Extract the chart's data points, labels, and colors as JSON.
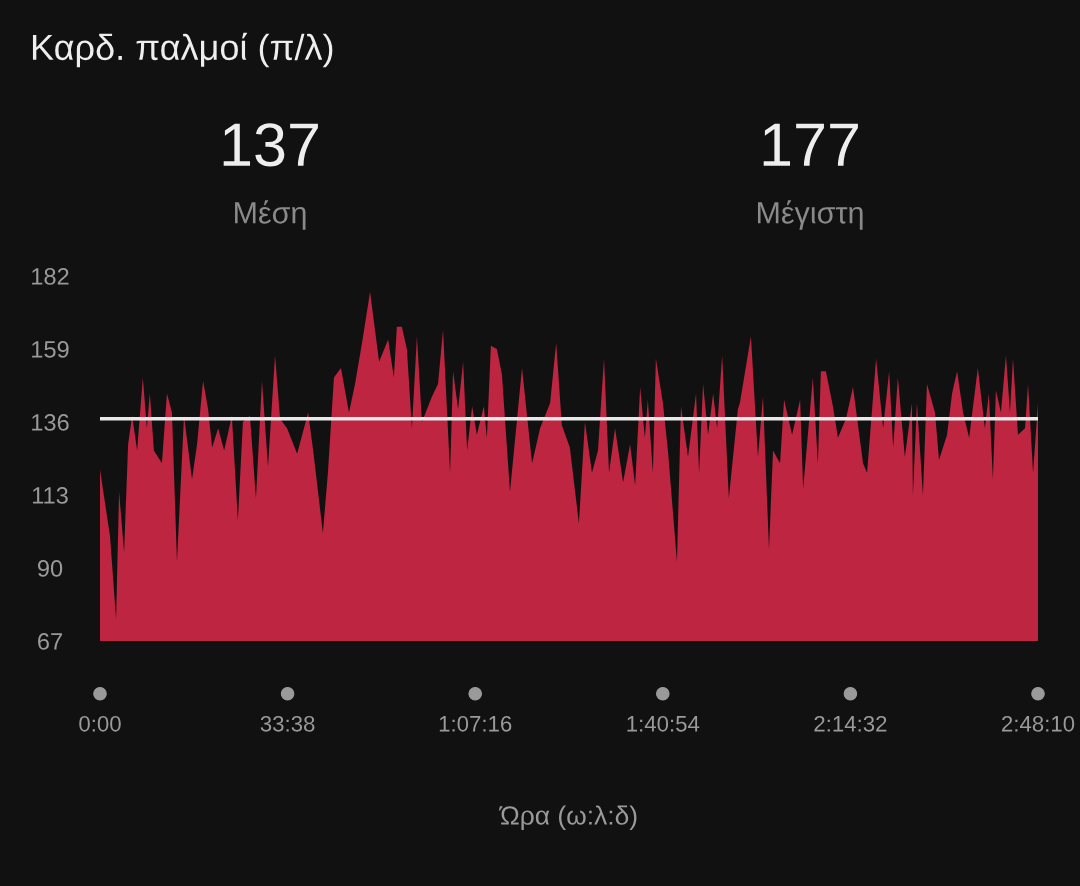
{
  "chart_data": {
    "type": "area",
    "title": "Καρδ. παλμοί (π/λ)",
    "xlabel": "Ώρα (ω:λ:δ)",
    "annotations": [
      "137",
      "Μέση",
      "177",
      "Μέγιστη"
    ],
    "xlim": [
      0,
      168.1667
    ],
    "ylim": [
      67,
      182
    ],
    "xticks": [
      {
        "value": 0,
        "label": "0:00"
      },
      {
        "value": 33.6333,
        "label": "33:38"
      },
      {
        "value": 67.2667,
        "label": "1:07:16"
      },
      {
        "value": 100.9,
        "label": "1:40:54"
      },
      {
        "value": 134.5333,
        "label": "2:14:32"
      },
      {
        "value": 168.1667,
        "label": "2:48:10"
      }
    ],
    "yticks": [
      67,
      90,
      113,
      136,
      159,
      182
    ],
    "grid": false,
    "legend": false,
    "ref_lines": [
      {
        "axis": "y",
        "value": 137,
        "color": "#e8e8e8"
      }
    ],
    "series": [
      {
        "color": "#bd2540",
        "x": [
          0,
          1.8,
          2.88,
          3.42,
          4.32,
          5.04,
          5.76,
          6.66,
          7.68,
          8.4,
          8.94,
          9.66,
          11.1,
          12,
          12.9,
          13.8,
          15.06,
          16.5,
          17.4,
          18.48,
          19.38,
          20.1,
          21.18,
          22.26,
          23.64,
          24.72,
          25.62,
          26.88,
          27.96,
          29.04,
          30.12,
          31.38,
          32.28,
          33.54,
          35.34,
          37.32,
          38.22,
          39.96,
          40.86,
          41.94,
          43.2,
          44.64,
          45.72,
          46.98,
          48.42,
          50.04,
          51.66,
          52.68,
          53.22,
          54.12,
          55.02,
          55.92,
          56.82,
          57.72,
          59.52,
          60.6,
          61.5,
          62.76,
          63.3,
          64.2,
          65.1,
          65.82,
          66.72,
          67.56,
          68.82,
          69.36,
          70.08,
          71.16,
          72.06,
          73.5,
          75.66,
          77.46,
          78.9,
          80.7,
          81.78,
          82.8,
          84.24,
          85.86,
          86.94,
          88.2,
          89.28,
          90.36,
          91.26,
          92.34,
          93.78,
          95.04,
          95.94,
          96.84,
          97.68,
          98.22,
          99.12,
          99.66,
          100.92,
          101.82,
          103.44,
          104.16,
          105.42,
          106.86,
          107.4,
          108.12,
          109.02,
          109.92,
          110.64,
          111.54,
          112.74,
          114.36,
          114.72,
          116.7,
          117.96,
          118.86,
          119.94,
          120.66,
          121.92,
          122.64,
          124.08,
          125.52,
          126.06,
          127.8,
          128.7,
          129.24,
          130.14,
          131.4,
          132.3,
          133.74,
          135,
          136.8,
          137.52,
          139.14,
          140.4,
          141.48,
          142.2,
          143.04,
          144.3,
          145.56,
          145.74,
          146.46,
          147.54,
          148.26,
          149.7,
          150.42,
          151.86,
          152.76,
          153.66,
          154.74,
          155.82,
          157.38,
          158.64,
          159.36,
          160.08,
          160.62,
          161.52,
          162.42,
          163.14,
          163.68,
          164.58,
          165.84,
          166.38,
          167.28,
          168.1667
        ],
        "values": [
          121,
          100,
          74,
          114,
          95,
          129,
          138,
          127,
          150,
          134,
          145,
          127,
          123,
          145,
          139,
          92,
          138,
          118,
          129,
          149,
          140,
          128,
          134,
          127,
          138,
          105,
          136,
          138,
          112,
          149,
          122,
          157,
          137,
          134,
          126,
          139,
          127,
          101,
          120,
          150,
          153,
          139,
          148,
          161,
          177,
          155,
          162,
          150,
          166,
          166,
          159,
          134,
          163,
          136,
          144,
          148,
          165,
          120,
          152,
          140,
          155,
          127,
          141,
          132,
          141,
          131,
          160,
          159,
          151,
          114,
          153,
          123,
          134,
          142,
          161,
          135,
          128,
          104,
          136,
          120,
          127,
          156,
          120,
          134,
          117,
          129,
          116,
          147,
          131,
          143,
          120,
          156,
          142,
          127,
          92,
          141,
          125,
          145,
          120,
          148,
          132,
          145,
          134,
          157,
          112,
          140,
          142,
          163,
          125,
          144,
          96,
          127,
          123,
          143,
          132,
          143,
          115,
          150,
          123,
          152,
          152,
          141,
          131,
          137,
          147,
          123,
          120,
          156,
          134,
          152,
          128,
          150,
          125,
          142,
          113,
          142,
          113,
          148,
          139,
          124,
          132,
          145,
          152,
          139,
          131,
          153,
          134,
          145,
          118,
          146,
          139,
          157,
          139,
          156,
          132,
          134,
          148,
          120,
          142
        ]
      }
    ]
  }
}
